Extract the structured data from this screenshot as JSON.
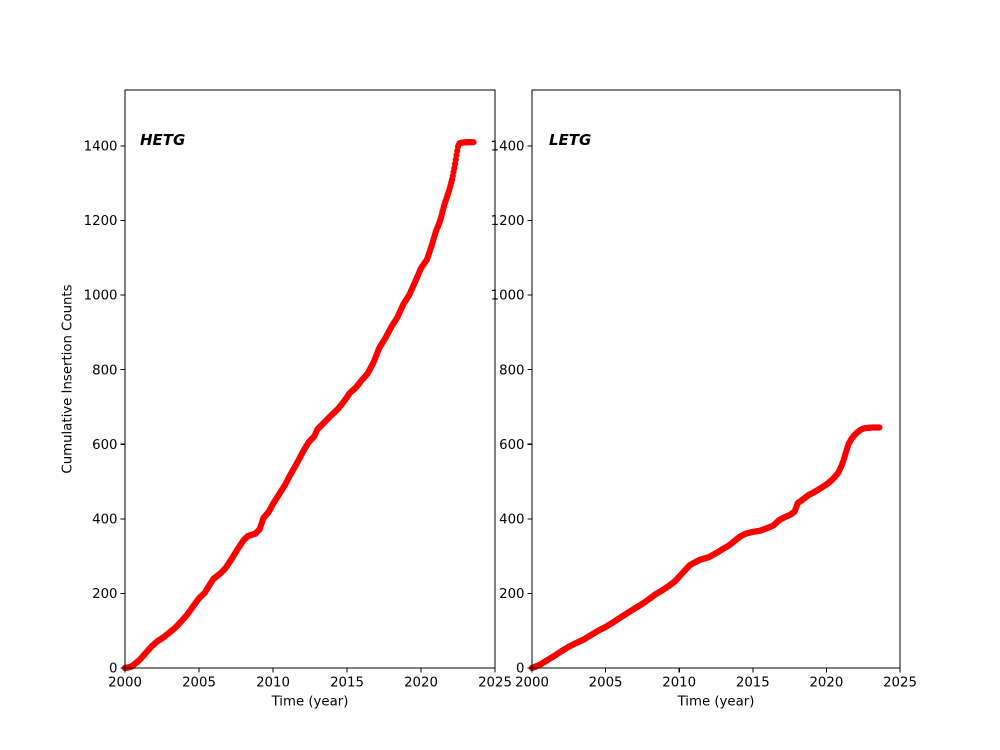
{
  "figure": {
    "background": "#ffffff",
    "marker_color": "#ff0000",
    "axis_color": "#000000"
  },
  "chart_data": [
    {
      "type": "scatter",
      "panel": "left",
      "annotation": "HETG",
      "xlabel": "Time (year)",
      "ylabel": "Cumulative Insertion Counts",
      "xlim": [
        2000,
        2025
      ],
      "ylim": [
        0,
        1550
      ],
      "xticks": [
        2000,
        2005,
        2010,
        2015,
        2020,
        2025
      ],
      "yticks": [
        0,
        200,
        400,
        600,
        800,
        1000,
        1200,
        1400
      ],
      "grid": false,
      "marker": "dot",
      "color": "#ff0000",
      "points": [
        [
          2000.0,
          0
        ],
        [
          2000.4,
          3
        ],
        [
          2000.7,
          12
        ],
        [
          2001.0,
          22
        ],
        [
          2001.4,
          40
        ],
        [
          2001.8,
          58
        ],
        [
          2002.2,
          72
        ],
        [
          2002.6,
          82
        ],
        [
          2003.0,
          95
        ],
        [
          2003.4,
          108
        ],
        [
          2003.8,
          125
        ],
        [
          2004.2,
          143
        ],
        [
          2004.6,
          165
        ],
        [
          2005.0,
          187
        ],
        [
          2005.4,
          202
        ],
        [
          2005.7,
          222
        ],
        [
          2006.0,
          240
        ],
        [
          2006.4,
          252
        ],
        [
          2006.8,
          268
        ],
        [
          2007.2,
          292
        ],
        [
          2007.6,
          318
        ],
        [
          2008.0,
          342
        ],
        [
          2008.3,
          354
        ],
        [
          2008.8,
          360
        ],
        [
          2009.1,
          372
        ],
        [
          2009.35,
          402
        ],
        [
          2009.7,
          418
        ],
        [
          2010.0,
          440
        ],
        [
          2010.4,
          465
        ],
        [
          2010.8,
          490
        ],
        [
          2011.2,
          520
        ],
        [
          2011.6,
          548
        ],
        [
          2012.0,
          578
        ],
        [
          2012.4,
          605
        ],
        [
          2012.8,
          622
        ],
        [
          2013.0,
          640
        ],
        [
          2013.3,
          652
        ],
        [
          2013.7,
          668
        ],
        [
          2014.0,
          680
        ],
        [
          2014.4,
          695
        ],
        [
          2014.8,
          715
        ],
        [
          2015.2,
          738
        ],
        [
          2015.6,
          752
        ],
        [
          2016.0,
          772
        ],
        [
          2016.4,
          790
        ],
        [
          2016.8,
          820
        ],
        [
          2017.2,
          860
        ],
        [
          2017.6,
          885
        ],
        [
          2018.0,
          915
        ],
        [
          2018.4,
          940
        ],
        [
          2018.8,
          975
        ],
        [
          2019.2,
          1000
        ],
        [
          2019.6,
          1035
        ],
        [
          2020.0,
          1072
        ],
        [
          2020.4,
          1095
        ],
        [
          2020.7,
          1130
        ],
        [
          2021.0,
          1170
        ],
        [
          2021.3,
          1200
        ],
        [
          2021.6,
          1245
        ],
        [
          2021.9,
          1280
        ],
        [
          2022.1,
          1310
        ],
        [
          2022.25,
          1340
        ],
        [
          2022.4,
          1375
        ],
        [
          2022.5,
          1398
        ],
        [
          2022.6,
          1407
        ],
        [
          2022.8,
          1409
        ],
        [
          2023.1,
          1410
        ],
        [
          2023.55,
          1410
        ]
      ]
    },
    {
      "type": "scatter",
      "panel": "right",
      "annotation": "LETG",
      "xlabel": "Time (year)",
      "ylabel": "",
      "xlim": [
        2000,
        2025
      ],
      "ylim": [
        0,
        1550
      ],
      "xticks": [
        2000,
        2005,
        2010,
        2015,
        2020,
        2025
      ],
      "yticks": [
        0,
        200,
        400,
        600,
        800,
        1000,
        1200,
        1400
      ],
      "grid": false,
      "marker": "dot",
      "color": "#ff0000",
      "points": [
        [
          2000.0,
          0
        ],
        [
          2000.5,
          8
        ],
        [
          2001.0,
          20
        ],
        [
          2001.5,
          32
        ],
        [
          2002.0,
          45
        ],
        [
          2002.5,
          57
        ],
        [
          2003.0,
          67
        ],
        [
          2003.5,
          76
        ],
        [
          2004.0,
          88
        ],
        [
          2004.5,
          100
        ],
        [
          2005.0,
          110
        ],
        [
          2005.5,
          122
        ],
        [
          2006.0,
          135
        ],
        [
          2006.5,
          148
        ],
        [
          2007.0,
          160
        ],
        [
          2007.5,
          172
        ],
        [
          2008.0,
          186
        ],
        [
          2008.4,
          198
        ],
        [
          2008.8,
          207
        ],
        [
          2009.3,
          220
        ],
        [
          2009.7,
          232
        ],
        [
          2010.0,
          245
        ],
        [
          2010.4,
          262
        ],
        [
          2010.7,
          275
        ],
        [
          2011.0,
          282
        ],
        [
          2011.4,
          290
        ],
        [
          2012.0,
          297
        ],
        [
          2012.6,
          310
        ],
        [
          2013.0,
          320
        ],
        [
          2013.4,
          329
        ],
        [
          2013.8,
          342
        ],
        [
          2014.2,
          354
        ],
        [
          2014.5,
          360
        ],
        [
          2015.0,
          365
        ],
        [
          2015.5,
          368
        ],
        [
          2015.9,
          374
        ],
        [
          2016.4,
          382
        ],
        [
          2016.8,
          397
        ],
        [
          2017.2,
          405
        ],
        [
          2017.6,
          412
        ],
        [
          2017.85,
          420
        ],
        [
          2018.05,
          442
        ],
        [
          2018.4,
          452
        ],
        [
          2018.8,
          464
        ],
        [
          2019.2,
          472
        ],
        [
          2019.6,
          482
        ],
        [
          2020.0,
          492
        ],
        [
          2020.4,
          505
        ],
        [
          2020.8,
          523
        ],
        [
          2021.0,
          540
        ],
        [
          2021.15,
          555
        ],
        [
          2021.3,
          575
        ],
        [
          2021.5,
          600
        ],
        [
          2021.7,
          614
        ],
        [
          2021.9,
          624
        ],
        [
          2022.1,
          632
        ],
        [
          2022.3,
          638
        ],
        [
          2022.5,
          642
        ],
        [
          2022.8,
          644
        ],
        [
          2023.2,
          645
        ],
        [
          2023.6,
          645
        ]
      ]
    }
  ]
}
